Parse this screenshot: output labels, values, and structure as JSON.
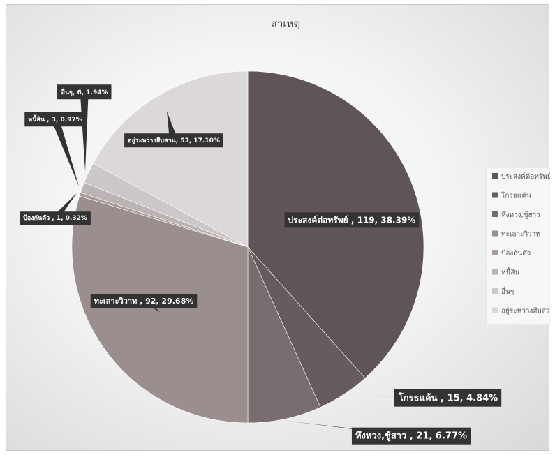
{
  "chart_data": {
    "type": "pie",
    "title": "สาเหตุ",
    "categories": [
      "ประสงค์ต่อทรัพย์",
      "โกรธแค้น",
      "หึงหวง,ชู้สาว",
      "ทะเลาะวิวาท",
      "ป้องกันตัว",
      "หนี้สิน",
      "อื่นๆ",
      "อยู่ระหว่างสืบสวน"
    ],
    "values": [
      119,
      15,
      21,
      92,
      1,
      3,
      6,
      53
    ],
    "data_labels": [
      "ประสงค์ต่อทรัพย์ , 119, 38.39%",
      "โกรธแค้น , 15, 4.84%",
      "หึงหวง,ชู้สาว , 21, 6.77%",
      "ทะเลาะวิวาท , 92, 29.68%",
      "ป้องกันตัว , 1, 0.32%",
      "หนี้สิน , 3, 0.97%",
      "อื่นๆ, 6, 1.94%",
      "อยู่ระหว่างสืบสวน, 53, 17.10%"
    ],
    "colors": [
      "#5f5556",
      "#665c5d",
      "#786e6f",
      "#9a8e8f",
      "#a99c9d",
      "#bcb3b4",
      "#cdc8c8",
      "#dcd8d8"
    ],
    "legend_position": "right"
  }
}
